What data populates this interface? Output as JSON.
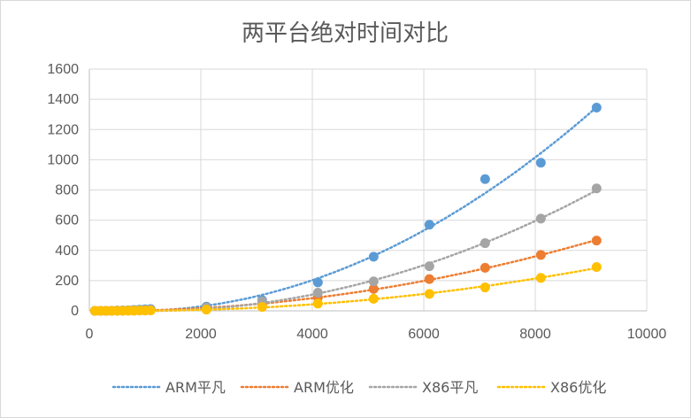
{
  "chart_data": {
    "type": "scatter",
    "title": "两平台绝对时间对比",
    "xlabel": "",
    "ylabel": "",
    "xlim": [
      0,
      10000
    ],
    "ylim": [
      0,
      1600
    ],
    "x_ticks": [
      0,
      2000,
      4000,
      6000,
      8000,
      10000
    ],
    "y_ticks": [
      0,
      200,
      400,
      600,
      800,
      1000,
      1200,
      1400,
      1600
    ],
    "x_tick_labels": [
      "0",
      "2000",
      "4000",
      "6000",
      "8000",
      "10000"
    ],
    "y_tick_labels": [
      "0",
      "200",
      "400",
      "600",
      "800",
      "1000",
      "1200",
      "1400",
      "1600"
    ],
    "grid": "vertical and horizontal",
    "legend_position": "bottom",
    "trendline": "polynomial, dotted",
    "series": [
      {
        "name": "ARM平凡",
        "color": "#5b9bd5",
        "x": [
          100,
          200,
          300,
          400,
          500,
          600,
          700,
          800,
          900,
          1000,
          1100,
          2100,
          3100,
          4100,
          5100,
          6100,
          7100,
          8100,
          9100
        ],
        "y": [
          0,
          0,
          0,
          1,
          2,
          3,
          4,
          6,
          8,
          10,
          12,
          28,
          70,
          188,
          358,
          570,
          872,
          980,
          1345
        ]
      },
      {
        "name": "ARM优化",
        "color": "#ed7d31",
        "x": [
          100,
          200,
          300,
          400,
          500,
          600,
          700,
          800,
          900,
          1000,
          1100,
          2100,
          3100,
          4100,
          5100,
          6100,
          7100,
          8100,
          9100
        ],
        "y": [
          0,
          0,
          0,
          0,
          1,
          1,
          2,
          2,
          3,
          4,
          5,
          14,
          38,
          88,
          145,
          210,
          285,
          370,
          465
        ]
      },
      {
        "name": "X86平凡",
        "color": "#a5a5a5",
        "x": [
          100,
          200,
          300,
          400,
          500,
          600,
          700,
          800,
          900,
          1000,
          1100,
          2100,
          3100,
          4100,
          5100,
          6100,
          7100,
          8100,
          9100
        ],
        "y": [
          0,
          0,
          0,
          1,
          1,
          2,
          3,
          4,
          5,
          6,
          8,
          22,
          62,
          120,
          195,
          295,
          448,
          610,
          810
        ]
      },
      {
        "name": "X86优化",
        "color": "#ffc000",
        "x": [
          100,
          200,
          300,
          400,
          500,
          600,
          700,
          800,
          900,
          1000,
          1100,
          2100,
          3100,
          4100,
          5100,
          6100,
          7100,
          8100,
          9100
        ],
        "y": [
          0,
          0,
          0,
          0,
          0,
          1,
          1,
          1,
          2,
          2,
          3,
          8,
          26,
          48,
          80,
          112,
          155,
          218,
          290
        ]
      }
    ]
  }
}
